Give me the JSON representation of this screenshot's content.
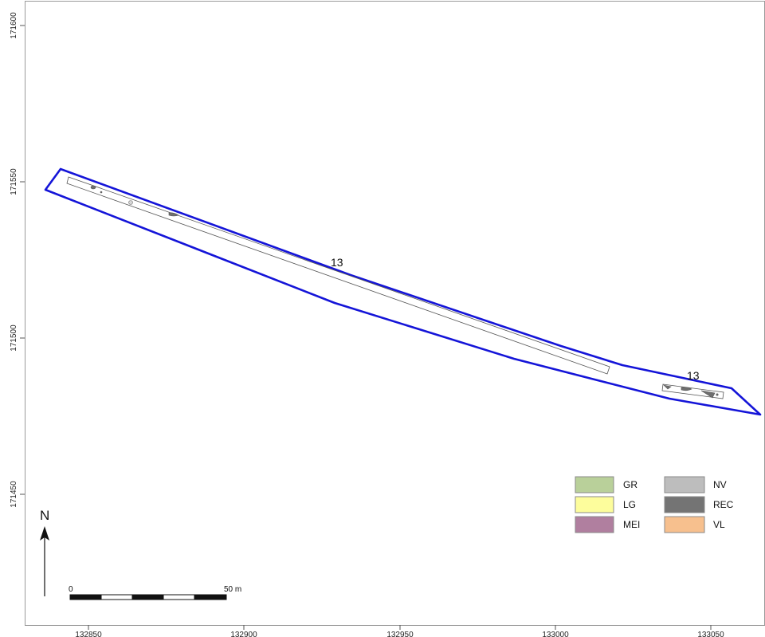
{
  "axes": {
    "x_ticks": [
      "132850",
      "132900",
      "132950",
      "133000",
      "133050"
    ],
    "y_ticks": [
      "171600",
      "171550",
      "171500",
      "171450"
    ]
  },
  "plot_labels": [
    "13",
    "13"
  ],
  "legend": [
    {
      "label": "GR",
      "color": "#b9d09a"
    },
    {
      "label": "NV",
      "color": "#bdbdbd"
    },
    {
      "label": "LG",
      "color": "#fdfd9c"
    },
    {
      "label": "REC",
      "color": "#747474"
    },
    {
      "label": "MEI",
      "color": "#b07f9f"
    },
    {
      "label": "VL",
      "color": "#f7c08e"
    }
  ],
  "north_arrow": {
    "letter": "N",
    "icon": "north-arrow-icon"
  },
  "scale_bar": {
    "start_label": "0",
    "end_label": "50 m"
  },
  "colors": {
    "parcel_outline": "#1414d8"
  }
}
